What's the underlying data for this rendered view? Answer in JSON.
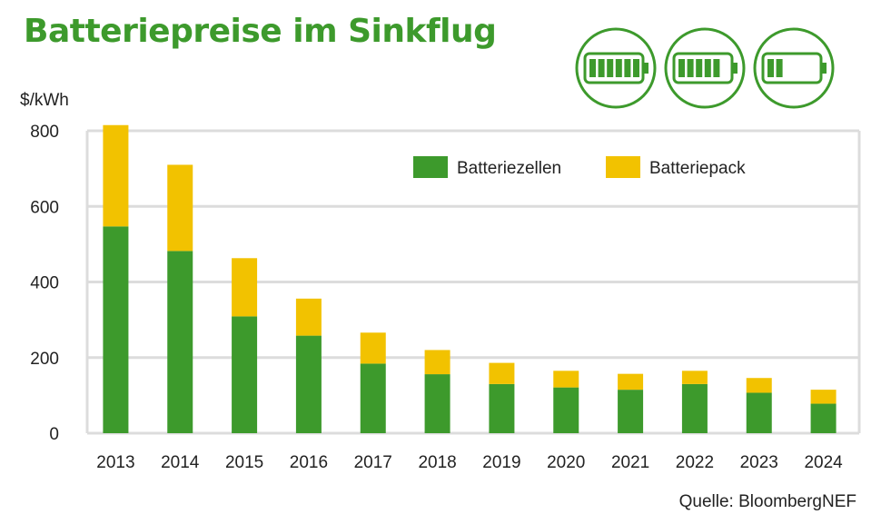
{
  "colors": {
    "accent": "#3d9a2c",
    "cells": "#3d9a2c",
    "pack": "#f2c200",
    "grid": "#dcdcdc",
    "text": "#222222"
  },
  "icons": [
    "battery-full-icon",
    "battery-medium-icon",
    "battery-low-icon"
  ],
  "battery_levels": [
    6,
    5,
    2
  ],
  "chart_data": {
    "type": "bar",
    "stacked": true,
    "title": "Batteriepreise im Sinkflug",
    "ylabel": "$/kWh",
    "xlabel": "",
    "categories": [
      "2013",
      "2014",
      "2015",
      "2016",
      "2017",
      "2018",
      "2019",
      "2020",
      "2021",
      "2022",
      "2023",
      "2024"
    ],
    "series": [
      {
        "name": "Batteriezellen",
        "values": [
          547,
          482,
          309,
          258,
          184,
          156,
          130,
          121,
          115,
          130,
          107,
          78
        ]
      },
      {
        "name": "Batteriepack",
        "values": [
          268,
          228,
          154,
          98,
          82,
          64,
          56,
          44,
          42,
          35,
          39,
          37
        ]
      }
    ],
    "ylim": [
      0,
      800
    ],
    "yticks": [
      "0",
      "200",
      "400",
      "600",
      "800"
    ],
    "legend_position": "top-right",
    "grid": true,
    "source": "Quelle: BloombergNEF"
  }
}
